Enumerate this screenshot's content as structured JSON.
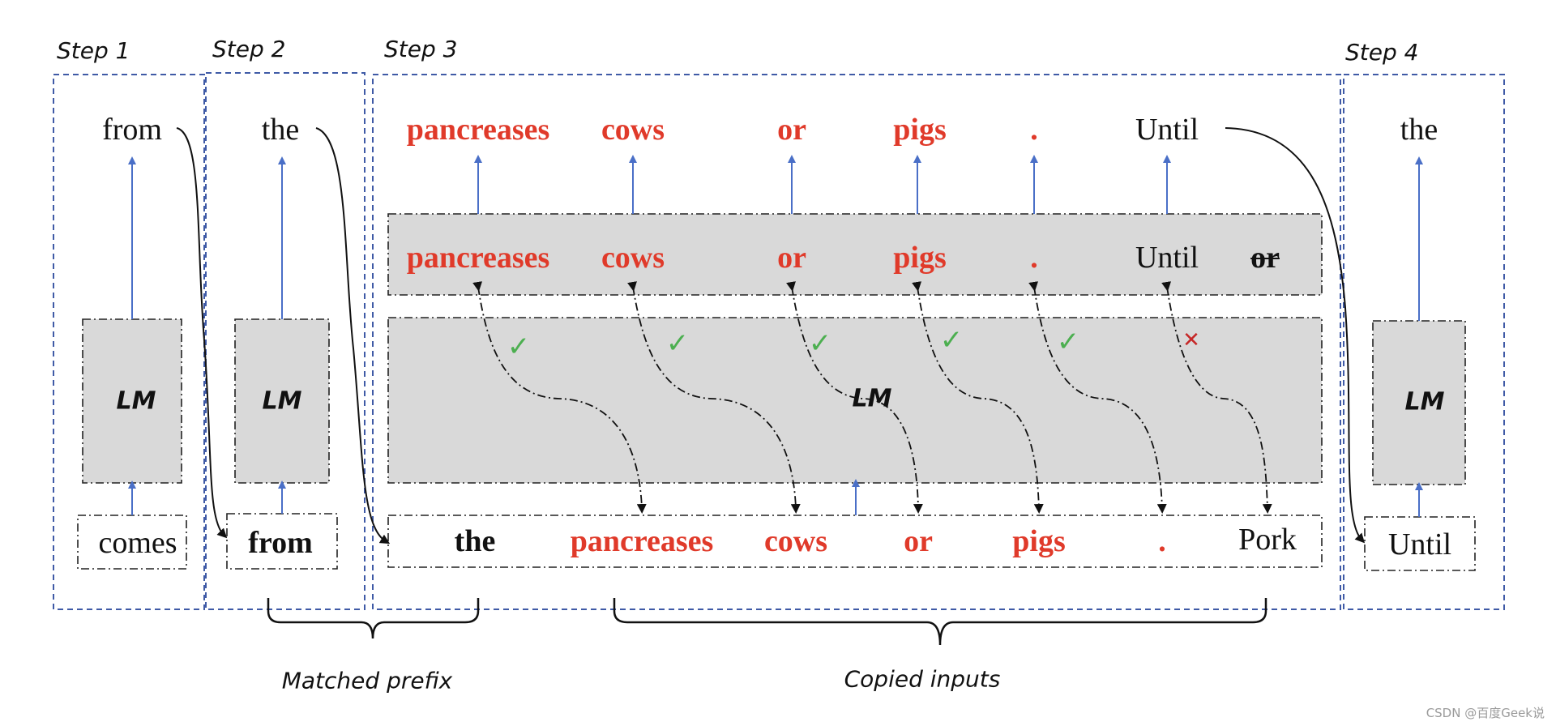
{
  "steps": {
    "step1": "Step 1",
    "step2": "Step 2",
    "step3": "Step 3",
    "step4": "Step 4"
  },
  "step1": {
    "output": "from",
    "model": "LM",
    "input": "comes"
  },
  "step2": {
    "output": "the",
    "model": "LM",
    "input": "from"
  },
  "step3": {
    "outputs": [
      "pancreases",
      "cows",
      "or",
      "pigs",
      ".",
      "Until"
    ],
    "predicted": [
      "pancreases",
      "cows",
      "or",
      "pigs",
      ".",
      "Until",
      "or"
    ],
    "model": "LM",
    "inputs": [
      "the",
      "pancreases",
      "cows",
      "or",
      "pigs",
      ".",
      "Pork"
    ],
    "verification": [
      "check",
      "check",
      "check",
      "check",
      "check",
      "cross"
    ]
  },
  "step4": {
    "output": "the",
    "model": "LM",
    "input": "Until"
  },
  "braces": {
    "matched": "Matched prefix",
    "copied": "Copied inputs"
  },
  "watermark": "CSDN @百度Geek说",
  "colors": {
    "copied_token": "#e03a2a",
    "step_border": "#3f5aa6",
    "arrow": "#4a6fc7",
    "lm_fill": "#d9d9d9",
    "check": "#4caf50",
    "cross": "#c62828"
  }
}
